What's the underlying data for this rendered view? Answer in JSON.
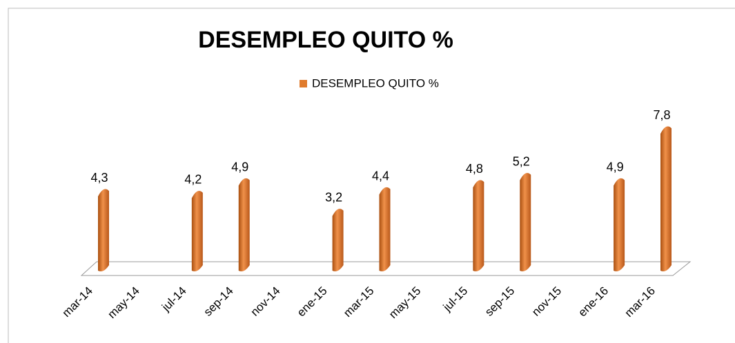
{
  "chart_data": {
    "type": "bar",
    "title": "DESEMPLEO QUITO %",
    "categories": [
      "mar-14",
      "may-14",
      "jul-14",
      "sep-14",
      "nov-14",
      "ene-15",
      "mar-15",
      "may-15",
      "jul-15",
      "sep-15",
      "nov-15",
      "ene-16",
      "mar-16"
    ],
    "series": [
      {
        "name": "DESEMPLEO QUITO %",
        "color": "#e07b2c",
        "values": [
          4.3,
          null,
          4.2,
          4.9,
          null,
          3.2,
          4.4,
          null,
          4.8,
          5.2,
          null,
          4.9,
          7.8
        ],
        "value_labels": [
          "4,3",
          null,
          "4,2",
          "4,9",
          null,
          "3,2",
          "4,4",
          null,
          "4,8",
          "5,2",
          null,
          "4,9",
          "7,8"
        ]
      }
    ],
    "ylim": [
      0,
      8
    ],
    "legend": "top"
  }
}
